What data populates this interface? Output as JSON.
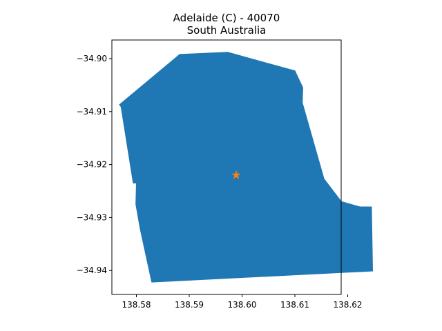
{
  "title": {
    "line1": "Adelaide (C) - 40070",
    "line2": "South Australia"
  },
  "colors": {
    "region_fill": "#1f77b4",
    "marker": "#ff7f0e",
    "axes": "#000000",
    "background": "#ffffff"
  },
  "map": {
    "x_ticks": [
      "138.58",
      "138.59",
      "138.60",
      "138.61",
      "138.62"
    ],
    "y_ticks": [
      "−34.90",
      "−34.91",
      "−34.92",
      "−34.93",
      "−34.94"
    ],
    "boundary_polygon": [
      [
        138.5768,
        -34.9087
      ],
      [
        138.5882,
        -34.8992
      ],
      [
        138.5973,
        -34.8988
      ],
      [
        138.61,
        -34.9023
      ],
      [
        138.6115,
        -34.9055
      ],
      [
        138.6114,
        -34.9083
      ],
      [
        138.6155,
        -34.9227
      ],
      [
        138.6188,
        -34.927
      ],
      [
        138.6223,
        -34.928
      ],
      [
        138.6245,
        -34.928
      ],
      [
        138.6247,
        -34.9401
      ],
      [
        138.5829,
        -34.9422
      ],
      [
        138.5807,
        -34.9321
      ],
      [
        138.5799,
        -34.9275
      ],
      [
        138.58,
        -34.9235
      ],
      [
        138.5794,
        -34.9235
      ],
      [
        138.5771,
        -34.9091
      ]
    ],
    "centroid_marker": {
      "symbol": "star",
      "lon": 138.5989,
      "lat": -34.922
    }
  }
}
